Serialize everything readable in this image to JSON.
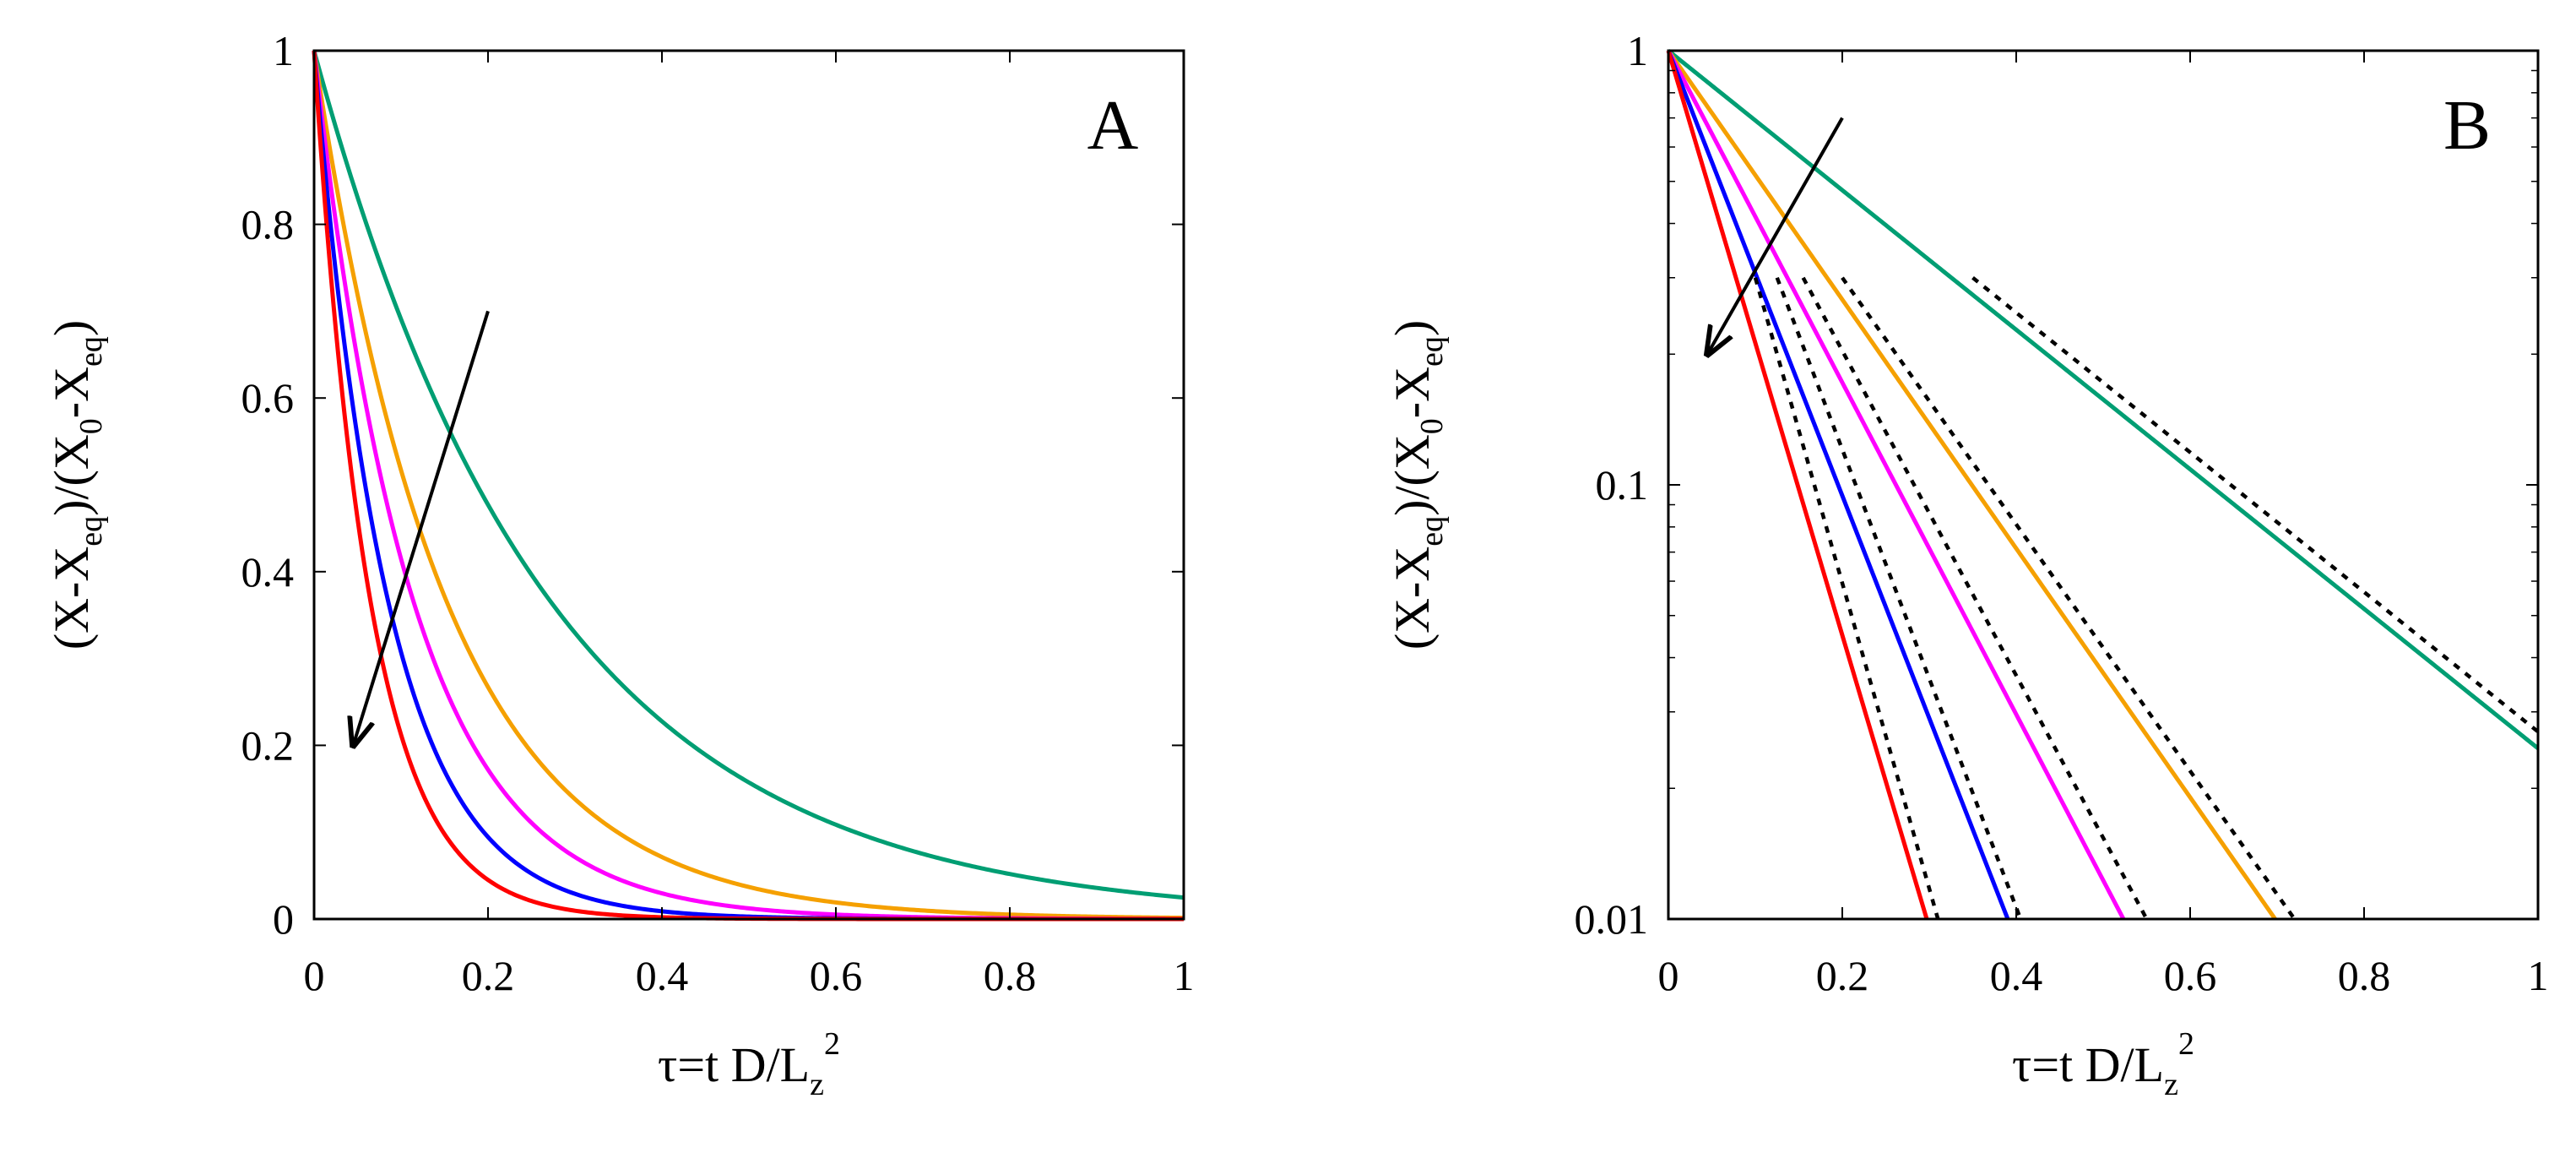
{
  "chart_data": [
    {
      "panel": "A",
      "type": "line",
      "yscale": "linear",
      "xlim": [
        0,
        1
      ],
      "ylim": [
        0,
        1
      ],
      "xticks": [
        0,
        0.2,
        0.4,
        0.6,
        0.8,
        1
      ],
      "xtick_labels": [
        "0",
        "0.2",
        "0.4",
        "0.6",
        "0.8",
        "1"
      ],
      "yticks": [
        0,
        0.2,
        0.4,
        0.6,
        0.8,
        1
      ],
      "ytick_labels": [
        "0",
        "0.2",
        "0.4",
        "0.6",
        "0.8",
        "1"
      ],
      "xlabel": {
        "main": "τ=t D/L",
        "sub": "z",
        "sup": "2"
      },
      "ylabel": {
        "p1": "(X-X",
        "s1": "eq",
        "p2": ")/(X",
        "s2": "0",
        "p3": "-X",
        "s3": "eq",
        "p4": ")"
      },
      "series": [
        {
          "name": "green",
          "color": "#009e73",
          "model": "exp",
          "rate": 3.7
        },
        {
          "name": "orange",
          "color": "#f5a000",
          "model": "exp",
          "rate": 6.6
        },
        {
          "name": "magenta",
          "color": "#ff00ff",
          "model": "exp",
          "rate": 8.8
        },
        {
          "name": "blue",
          "color": "#0000ff",
          "model": "exp",
          "rate": 11.8
        },
        {
          "name": "red",
          "color": "#ff0000",
          "model": "exp",
          "rate": 15.5
        }
      ],
      "arrow": {
        "from": [
          0.2,
          0.7
        ],
        "to": [
          0.045,
          0.2
        ],
        "meaning": "direction of increasing rate"
      }
    },
    {
      "panel": "B",
      "type": "line",
      "yscale": "log",
      "xlim": [
        0,
        1
      ],
      "ylim": [
        0.01,
        1
      ],
      "xticks": [
        0,
        0.2,
        0.4,
        0.6,
        0.8,
        1
      ],
      "xtick_labels": [
        "0",
        "0.2",
        "0.4",
        "0.6",
        "0.8",
        "1"
      ],
      "yticks": [
        0.01,
        0.1,
        1
      ],
      "ytick_labels": [
        "0.01",
        "0.1",
        "1"
      ],
      "xlabel": {
        "main": "τ=t D/L",
        "sub": "z",
        "sup": "2"
      },
      "ylabel": {
        "p1": "(X-X",
        "s1": "eq",
        "p2": ")/(X",
        "s2": "0",
        "p3": "-X",
        "s3": "eq",
        "p4": ")"
      },
      "series": [
        {
          "name": "green",
          "color": "#009e73",
          "model": "exp",
          "rate": 3.7
        },
        {
          "name": "orange",
          "color": "#f5a000",
          "model": "exp",
          "rate": 6.6
        },
        {
          "name": "magenta",
          "color": "#ff00ff",
          "model": "exp",
          "rate": 8.8
        },
        {
          "name": "blue",
          "color": "#0000ff",
          "model": "exp",
          "rate": 11.8
        },
        {
          "name": "red",
          "color": "#ff0000",
          "model": "exp",
          "rate": 15.5
        }
      ],
      "asymptotes": [
        {
          "name": "green-fit",
          "x": [
            0.35,
            1.0
          ],
          "y": [
            0.3,
            0.027
          ]
        },
        {
          "name": "orange-fit",
          "x": [
            0.2,
            0.72
          ],
          "y": [
            0.3,
            0.01
          ]
        },
        {
          "name": "magenta-fit",
          "x": [
            0.155,
            0.55
          ],
          "y": [
            0.3,
            0.01
          ]
        },
        {
          "name": "blue-fit",
          "x": [
            0.125,
            0.405
          ],
          "y": [
            0.3,
            0.01
          ]
        },
        {
          "name": "red-fit",
          "x": [
            0.1,
            0.31
          ],
          "y": [
            0.3,
            0.01
          ]
        }
      ],
      "arrow": {
        "from": [
          0.2,
          0.7
        ],
        "to": [
          0.045,
          0.2
        ],
        "meaning": "direction of increasing rate"
      }
    }
  ]
}
